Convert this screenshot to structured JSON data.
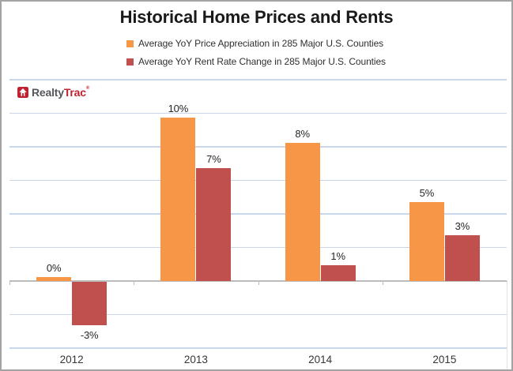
{
  "title": "Historical Home Prices and Rents",
  "logo": {
    "realty": "Realty",
    "trac": "Trac",
    "registered_mark": "®"
  },
  "colors": {
    "price_series": "#F79646",
    "rent_series": "#C0504D",
    "gridline": "#C8D8EA",
    "axis": "#BCBCBC",
    "logo_red": "#BE2330",
    "logo_gray": "#55565A",
    "title_text": "#1A1A1A",
    "label_text": "#262626"
  },
  "chart_data": {
    "type": "bar",
    "title": "Historical Home Prices and Rents",
    "categories": [
      "2012",
      "2013",
      "2014",
      "2015"
    ],
    "series": [
      {
        "name": "Average YoY Price Appreciation in 285 Major U.S. Counties",
        "color": "#F79646",
        "values": [
          0,
          10,
          8,
          5
        ],
        "labels": [
          "0%",
          "10%",
          "8%",
          "5%"
        ],
        "plotted_values": [
          0.2,
          9.7,
          8.2,
          4.7
        ]
      },
      {
        "name": "Average YoY Rent Rate Change in 285 Major U.S. Counties",
        "color": "#C0504D",
        "values": [
          -3,
          7,
          1,
          3
        ],
        "labels": [
          "-3%",
          "7%",
          "1%",
          "3%"
        ],
        "plotted_values": [
          -2.6,
          6.7,
          0.9,
          2.7
        ]
      }
    ],
    "ylim": [
      -4,
      12
    ],
    "gridline_step": 2,
    "grid": true,
    "y_axis_labels_visible": false,
    "legend_position": "top",
    "data_labels_visible": true
  }
}
